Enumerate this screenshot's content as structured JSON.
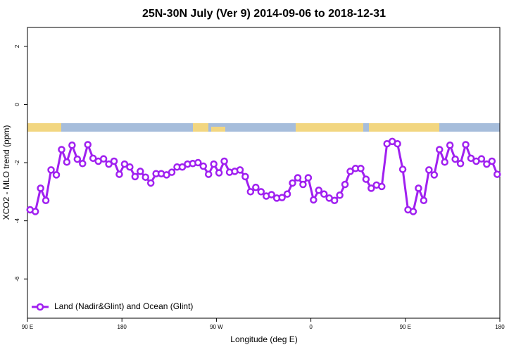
{
  "chart_data": {
    "type": "line",
    "title": "25N-30N July (Ver 9)   2014-09-06 to 2018-12-31",
    "x_label": "Longitude (deg E)",
    "y_label": "XCO2 - MLO trend (ppm)",
    "x": [
      92.5,
      97.5,
      102.5,
      107.5,
      112.5,
      117.5,
      122.5,
      127.5,
      132.5,
      137.5,
      142.5,
      147.5,
      152.5,
      157.5,
      162.5,
      167.5,
      172.5,
      177.5,
      182.5,
      187.5,
      192.5,
      197.5,
      202.5,
      207.5,
      212.5,
      217.5,
      222.5,
      227.5,
      232.5,
      237.5,
      242.5,
      247.5,
      252.5,
      257.5,
      262.5,
      267.5,
      272.5,
      277.5,
      282.5,
      287.5,
      292.5,
      297.5,
      302.5,
      307.5,
      312.5,
      317.5,
      322.5,
      327.5,
      332.5,
      337.5,
      342.5,
      347.5,
      352.5,
      357.5,
      362.5,
      367.5,
      372.5,
      377.5,
      382.5,
      387.5,
      392.5,
      397.5,
      402.5,
      407.5,
      412.5,
      417.5,
      422.5,
      427.5,
      432.5,
      437.5,
      442.5,
      447.5,
      452.5,
      457.5,
      462.5,
      467.5,
      472.5,
      477.5,
      482.5,
      487.5,
      492.5,
      497.5,
      502.5,
      507.5,
      512.5,
      517.5,
      522.5,
      527.5,
      532.5,
      537.5
    ],
    "series": [
      {
        "name": "Land (Nadir&Glint) and Ocean (Glint)",
        "color": "#a020f0",
        "values": [
          -3.62,
          -3.68,
          -2.88,
          -3.3,
          -2.25,
          -2.42,
          -1.55,
          -1.98,
          -1.4,
          -1.88,
          -2.03,
          -1.38,
          -1.85,
          -1.95,
          -1.87,
          -2.05,
          -1.95,
          -2.4,
          -2.05,
          -2.15,
          -2.48,
          -2.3,
          -2.5,
          -2.7,
          -2.38,
          -2.38,
          -2.42,
          -2.33,
          -2.15,
          -2.15,
          -2.05,
          -2.03,
          -2.0,
          -2.12,
          -2.4,
          -2.05,
          -2.35,
          -1.95,
          -2.33,
          -2.3,
          -2.25,
          -2.48,
          -3.0,
          -2.85,
          -3.0,
          -3.15,
          -3.1,
          -3.22,
          -3.2,
          -3.08,
          -2.7,
          -2.52,
          -2.75,
          -2.52,
          -3.28,
          -2.95,
          -3.08,
          -3.22,
          -3.3,
          -3.12,
          -2.75,
          -2.3,
          -2.2,
          -2.2,
          -2.57,
          -2.88,
          -2.77,
          -2.82,
          -1.35,
          -1.27,
          -1.35,
          -2.23,
          -3.62,
          -3.68,
          -2.88,
          -3.3,
          -2.25,
          -2.42,
          -1.55,
          -1.98,
          -1.4,
          -1.88,
          -2.03,
          -1.38,
          -1.85,
          -1.95,
          -1.87,
          -2.05,
          -1.95,
          -2.4
        ]
      }
    ],
    "xlim": [
      90,
      540
    ],
    "xticks": [
      {
        "value": 90,
        "label": "90 E"
      },
      180,
      {
        "value": 270,
        "label": "90 W"
      },
      {
        "value": 360,
        "label": "0"
      },
      {
        "value": 450,
        "label": "90 E"
      },
      {
        "value": 540,
        "label": "180"
      }
    ],
    "ylim": [
      -7.35,
      2.65
    ],
    "yticks": [
      2,
      0,
      -2,
      -4,
      -6
    ],
    "legend": "bottomleft"
  }
}
